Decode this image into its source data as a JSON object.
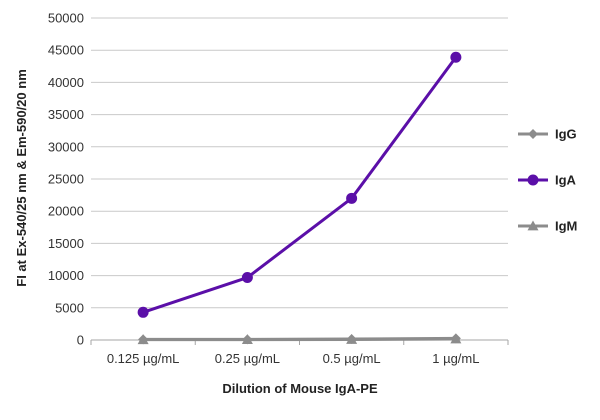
{
  "chart_data": {
    "type": "line",
    "title": "",
    "xlabel": "Dilution of Mouse IgA-PE",
    "ylabel": "FI at Ex-540/25 nm & Em-590/20 nm",
    "categories": [
      "0.125 µg/mL",
      "0.25 µg/mL",
      "0.5 µg/mL",
      "1 µg/mL"
    ],
    "ylim": [
      0,
      50000
    ],
    "yticks": [
      0,
      5000,
      10000,
      15000,
      20000,
      25000,
      30000,
      35000,
      40000,
      45000,
      50000
    ],
    "grid": true,
    "legend_position": "right",
    "series": [
      {
        "name": "IgG",
        "values": [
          100,
          100,
          150,
          250
        ],
        "color": "#8c8c8c",
        "marker": "diamond"
      },
      {
        "name": "IgA",
        "values": [
          4300,
          9700,
          22000,
          43900
        ],
        "color": "#5b0fa8",
        "marker": "circle"
      },
      {
        "name": "IgM",
        "values": [
          50,
          60,
          80,
          150
        ],
        "color": "#8c8c8c",
        "marker": "triangle"
      }
    ]
  }
}
